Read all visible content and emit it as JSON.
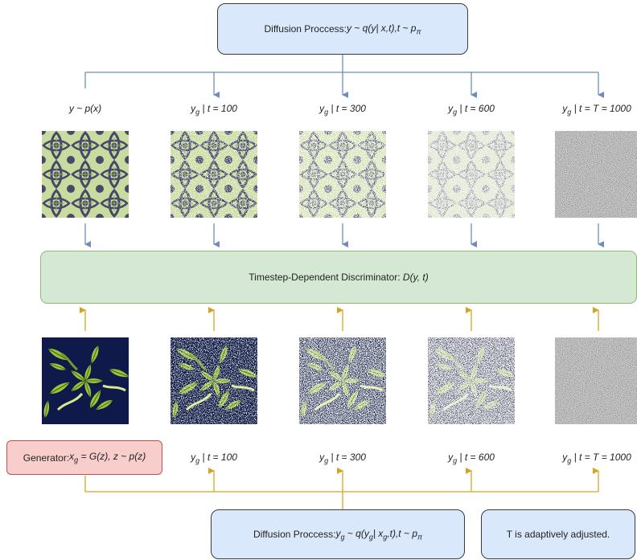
{
  "top_box": {
    "prefix": "Diffusion Proccess: ",
    "formula": "y ~ q(y| x,t),t ~ p",
    "formula_sub": "π"
  },
  "top_labels": [
    {
      "main": "y ~ p(x)",
      "sub": "",
      "rest": ""
    },
    {
      "main": "y",
      "sub": "g",
      "rest": " | t = 100"
    },
    {
      "main": "y",
      "sub": "g",
      "rest": " | t = 300"
    },
    {
      "main": "y",
      "sub": "g",
      "rest": " | t = 600"
    },
    {
      "main": "y",
      "sub": "g",
      "rest": " | t = T = 1000"
    }
  ],
  "discriminator": {
    "prefix": "Timestep-Dependent Discriminator: ",
    "formula": "D(y, t)"
  },
  "generator": {
    "prefix": "Generator: ",
    "x": "x",
    "x_sub": "g",
    "rest": " = G(z), z ~ p(z)"
  },
  "bottom_labels": [
    {
      "main": "y",
      "sub": "g",
      "rest": " | t = 100"
    },
    {
      "main": "y",
      "sub": "g",
      "rest": " | t = 300"
    },
    {
      "main": "y",
      "sub": "g",
      "rest": " | t = 600"
    },
    {
      "main": "y",
      "sub": "g",
      "rest": " | t = T = 1000"
    }
  ],
  "bottom_box": {
    "prefix": "Diffusion Proccess: ",
    "f1": "y",
    "f1_sub": "g",
    "f2": " ~ q(y",
    "f2_sub": "g",
    "f3": "| x",
    "f3_sub": "g",
    "f4": ",t),t ~ p",
    "f4_sub": "π"
  },
  "note_box": {
    "text": "T is adaptively adjusted."
  },
  "colors": {
    "blue_line": "#6c8ebf",
    "orange_line": "#d6a520",
    "pattern_bg": "#c9dc9f",
    "pattern_dark": "#4a4868",
    "fern_bg": "#101a4a",
    "fern_leaf": "#9cc43a"
  }
}
